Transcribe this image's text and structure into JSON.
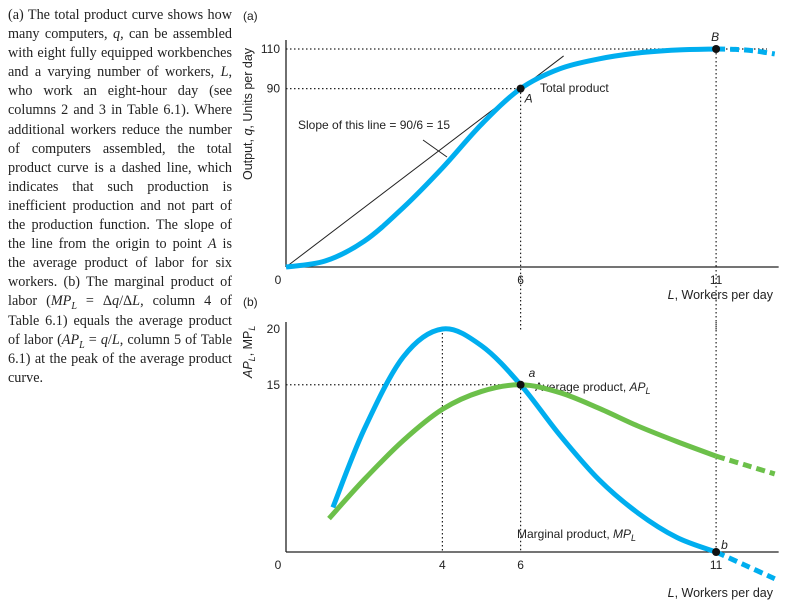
{
  "caption": [
    {
      "t": "(a) The total product curve shows how many computers, "
    },
    {
      "t": "q",
      "i": true
    },
    {
      "t": ", can be assembled with eight fully equipped workbenches and a varying number of workers, "
    },
    {
      "t": "L",
      "i": true
    },
    {
      "t": ", who work an eight-hour day (see columns 2 and 3 in Table 6.1). Where additional workers reduce the number of computers assembled, the total product curve is a dashed line, which indicates that such production is inefficient production and not part of the production function. The slope of the line from the origin to point "
    },
    {
      "t": "A",
      "i": true
    },
    {
      "t": " is the average product of labor for six workers. (b) The marginal product of labor ("
    },
    {
      "t": "MP",
      "i": true
    },
    {
      "t": "L",
      "i": true,
      "sub": true
    },
    {
      "t": " = Δ"
    },
    {
      "t": "q",
      "i": true
    },
    {
      "t": "/Δ"
    },
    {
      "t": "L",
      "i": true
    },
    {
      "t": ", column 4 of Table 6.1) equals the average product of labor ("
    },
    {
      "t": "AP",
      "i": true
    },
    {
      "t": "L",
      "i": true,
      "sub": true
    },
    {
      "t": " = "
    },
    {
      "t": "q",
      "i": true
    },
    {
      "t": "/"
    },
    {
      "t": "L",
      "i": true
    },
    {
      "t": ", column 5 of Table 6.1) at the peak of the average product curve."
    }
  ],
  "colors": {
    "total_product": "#00aeef",
    "marginal_product": "#00aeef",
    "average_product": "#6cc04a",
    "axes": "#222222"
  },
  "chart_data": [
    {
      "panel_label": "(a)",
      "type": "line",
      "ylabel": {
        "pre": "Output, ",
        "var": "q",
        "post": ", Units per day"
      },
      "xlabel": {
        "var": "L",
        "post": ", Workers per day"
      },
      "xticks": [
        "0",
        "6",
        "11"
      ],
      "yticks": [
        "90",
        "110"
      ],
      "xlim": [
        0,
        12.5
      ],
      "ylim": [
        0,
        110
      ],
      "series": [
        {
          "name": "Total product",
          "x": [
            0,
            1,
            2,
            3,
            4,
            5,
            6,
            7,
            8,
            9,
            10,
            11
          ],
          "y": [
            0,
            3,
            13,
            30,
            50,
            72,
            90,
            100,
            105,
            108,
            109.5,
            110
          ],
          "dashed_x": [
            11,
            11.5,
            12,
            12.5
          ],
          "dashed_y": [
            110,
            109.8,
            109,
            107.5
          ]
        }
      ],
      "ray": {
        "label": "Slope of this line = 90/6 = 15",
        "slope": 15,
        "x_end": 7.1
      },
      "points": [
        {
          "label": "A",
          "x": 6,
          "y": 90
        },
        {
          "label": "B",
          "x": 11,
          "y": 110
        }
      ],
      "guides": {
        "x": [
          6,
          11
        ],
        "y": [
          90,
          110
        ]
      }
    },
    {
      "panel_label": "(b)",
      "type": "line",
      "ylabel": {
        "a": "AP",
        "b": "L",
        "c": ", MP",
        "d": "L"
      },
      "xlabel": {
        "var": "L",
        "post": ", Workers per day"
      },
      "xticks": [
        "0",
        "4",
        "6",
        "11"
      ],
      "yticks": [
        "15",
        "20"
      ],
      "xlim": [
        0,
        12.5
      ],
      "ylim": [
        0,
        20
      ],
      "series": [
        {
          "name": "Marginal product, MP_L",
          "label_main": "Marginal product, ",
          "label_var": "MP",
          "label_sub": "L",
          "x": [
            1.2,
            2,
            3,
            4,
            5,
            6,
            7,
            8,
            9,
            10,
            11
          ],
          "y": [
            4,
            11,
            17.5,
            20,
            18.5,
            15,
            10.5,
            6.5,
            3.5,
            1.3,
            0
          ],
          "dashed_x": [
            11,
            11.75,
            12.5
          ],
          "dashed_y": [
            0,
            -1.2,
            -2.4
          ]
        },
        {
          "name": "Average product, AP_L",
          "label_main": "Average product, ",
          "label_var": "AP",
          "label_sub": "L",
          "x": [
            1.1,
            2,
            3,
            4,
            5,
            6,
            7,
            8,
            9,
            10,
            11
          ],
          "y": [
            3,
            6.5,
            10,
            12.8,
            14.4,
            15,
            14.3,
            12.9,
            11.3,
            9.9,
            8.6
          ],
          "dashed_x": [
            11,
            11.75,
            12.5
          ],
          "dashed_y": [
            8.6,
            7.8,
            7
          ]
        }
      ],
      "points": [
        {
          "label": "a",
          "x": 6,
          "y": 15
        },
        {
          "label": "b",
          "x": 11,
          "y": 0
        }
      ],
      "guides": {
        "x": [
          4,
          6,
          11
        ],
        "y": [
          15
        ]
      }
    }
  ]
}
